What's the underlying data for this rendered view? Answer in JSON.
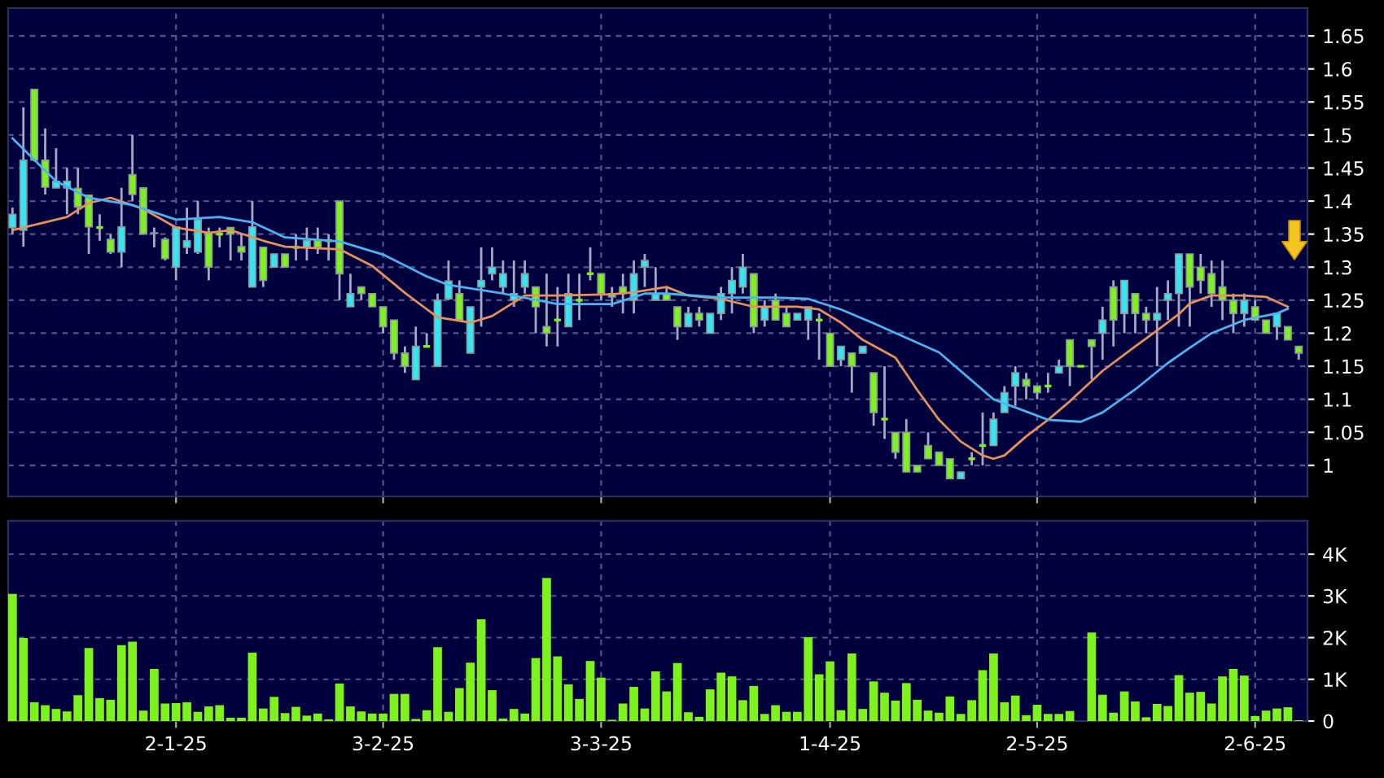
{
  "chart_data": [
    {
      "type": "candlestick",
      "ohlc": [
        [
          1.36,
          1.39,
          1.35,
          1.38
        ],
        [
          1.356,
          1.542,
          1.331,
          1.462
        ],
        [
          1.569,
          1.57,
          1.46,
          1.462
        ],
        [
          1.462,
          1.51,
          1.41,
          1.421
        ],
        [
          1.42,
          1.48,
          1.42,
          1.43
        ],
        [
          1.42,
          1.45,
          1.38,
          1.43
        ],
        [
          1.419,
          1.45,
          1.38,
          1.391
        ],
        [
          1.409,
          1.41,
          1.32,
          1.361
        ],
        [
          1.36,
          1.38,
          1.34,
          1.36
        ],
        [
          1.342,
          1.35,
          1.32,
          1.323
        ],
        [
          1.323,
          1.42,
          1.3,
          1.361
        ],
        [
          1.44,
          1.5,
          1.4,
          1.41
        ],
        [
          1.42,
          1.42,
          1.35,
          1.35
        ],
        [
          1.352,
          1.36,
          1.33,
          1.351
        ],
        [
          1.342,
          1.345,
          1.31,
          1.313
        ],
        [
          1.3,
          1.361,
          1.28,
          1.361
        ],
        [
          1.33,
          1.39,
          1.32,
          1.34
        ],
        [
          1.323,
          1.4,
          1.32,
          1.372
        ],
        [
          1.352,
          1.36,
          1.28,
          1.3
        ],
        [
          1.35,
          1.36,
          1.33,
          1.35
        ],
        [
          1.36,
          1.36,
          1.31,
          1.35
        ],
        [
          1.331,
          1.35,
          1.31,
          1.323
        ],
        [
          1.27,
          1.4,
          1.27,
          1.361
        ],
        [
          1.33,
          1.33,
          1.27,
          1.28
        ],
        [
          1.3,
          1.32,
          1.3,
          1.32
        ],
        [
          1.32,
          1.32,
          1.3,
          1.3
        ],
        [
          1.33,
          1.35,
          1.31,
          1.33
        ],
        [
          1.33,
          1.36,
          1.31,
          1.34
        ],
        [
          1.34,
          1.36,
          1.32,
          1.33
        ],
        [
          1.34,
          1.35,
          1.31,
          1.34
        ],
        [
          1.4,
          1.4,
          1.25,
          1.29
        ],
        [
          1.24,
          1.29,
          1.24,
          1.26
        ],
        [
          1.27,
          1.27,
          1.25,
          1.26
        ],
        [
          1.26,
          1.26,
          1.24,
          1.24
        ],
        [
          1.24,
          1.24,
          1.2,
          1.21
        ],
        [
          1.22,
          1.22,
          1.16,
          1.17
        ],
        [
          1.17,
          1.18,
          1.14,
          1.15
        ],
        [
          1.13,
          1.21,
          1.13,
          1.18
        ],
        [
          1.18,
          1.2,
          1.18,
          1.18
        ],
        [
          1.15,
          1.26,
          1.15,
          1.25
        ],
        [
          1.252,
          1.31,
          1.25,
          1.279
        ],
        [
          1.26,
          1.28,
          1.22,
          1.22
        ],
        [
          1.17,
          1.24,
          1.17,
          1.24
        ],
        [
          1.27,
          1.33,
          1.21,
          1.28
        ],
        [
          1.29,
          1.33,
          1.28,
          1.3
        ],
        [
          1.27,
          1.31,
          1.26,
          1.29
        ],
        [
          1.25,
          1.31,
          1.24,
          1.26
        ],
        [
          1.27,
          1.31,
          1.26,
          1.29
        ],
        [
          1.27,
          1.27,
          1.2,
          1.24
        ],
        [
          1.21,
          1.29,
          1.18,
          1.2
        ],
        [
          1.22,
          1.27,
          1.18,
          1.22
        ],
        [
          1.21,
          1.29,
          1.21,
          1.26
        ],
        [
          1.25,
          1.29,
          1.22,
          1.25
        ],
        [
          1.29,
          1.33,
          1.28,
          1.29
        ],
        [
          1.29,
          1.29,
          1.25,
          1.26
        ],
        [
          1.255,
          1.27,
          1.24,
          1.26
        ],
        [
          1.27,
          1.29,
          1.23,
          1.26
        ],
        [
          1.25,
          1.31,
          1.23,
          1.29
        ],
        [
          1.3,
          1.32,
          1.27,
          1.31
        ],
        [
          1.25,
          1.3,
          1.25,
          1.26
        ],
        [
          1.26,
          1.27,
          1.25,
          1.25
        ],
        [
          1.24,
          1.24,
          1.19,
          1.21
        ],
        [
          1.21,
          1.24,
          1.21,
          1.23
        ],
        [
          1.23,
          1.24,
          1.21,
          1.22
        ],
        [
          1.2,
          1.23,
          1.2,
          1.23
        ],
        [
          1.23,
          1.27,
          1.22,
          1.26
        ],
        [
          1.26,
          1.3,
          1.23,
          1.28
        ],
        [
          1.27,
          1.32,
          1.26,
          1.3
        ],
        [
          1.29,
          1.29,
          1.2,
          1.21
        ],
        [
          1.22,
          1.25,
          1.21,
          1.24
        ],
        [
          1.25,
          1.26,
          1.22,
          1.22
        ],
        [
          1.23,
          1.24,
          1.21,
          1.21
        ],
        [
          1.22,
          1.23,
          1.22,
          1.23
        ],
        [
          1.22,
          1.24,
          1.19,
          1.24
        ],
        [
          1.22,
          1.23,
          1.16,
          1.22
        ],
        [
          1.2,
          1.2,
          1.15,
          1.15
        ],
        [
          1.16,
          1.18,
          1.15,
          1.18
        ],
        [
          1.17,
          1.17,
          1.11,
          1.15
        ],
        [
          1.17,
          1.18,
          1.17,
          1.18
        ],
        [
          1.14,
          1.14,
          1.06,
          1.08
        ],
        [
          1.07,
          1.15,
          1.04,
          1.07
        ],
        [
          1.05,
          1.05,
          1.01,
          1.02
        ],
        [
          1.05,
          1.07,
          0.99,
          0.99
        ],
        [
          1.0,
          1.0,
          0.99,
          0.99
        ],
        [
          1.03,
          1.05,
          1.01,
          1.01
        ],
        [
          1.02,
          1.02,
          1.0,
          1.0
        ],
        [
          1.01,
          1.01,
          0.98,
          0.98
        ],
        [
          0.98,
          0.99,
          0.98,
          0.99
        ],
        [
          1.01,
          1.02,
          1.0,
          1.01
        ],
        [
          1.03,
          1.08,
          1.0,
          1.03
        ],
        [
          1.03,
          1.08,
          1.03,
          1.07
        ],
        [
          1.08,
          1.12,
          1.08,
          1.11
        ],
        [
          1.12,
          1.15,
          1.09,
          1.14
        ],
        [
          1.13,
          1.14,
          1.1,
          1.12
        ],
        [
          1.12,
          1.12,
          1.1,
          1.11
        ],
        [
          1.12,
          1.14,
          1.11,
          1.12
        ],
        [
          1.14,
          1.16,
          1.14,
          1.15
        ],
        [
          1.19,
          1.19,
          1.12,
          1.15
        ],
        [
          1.15,
          1.15,
          1.15,
          1.15
        ],
        [
          1.19,
          1.19,
          1.13,
          1.18
        ],
        [
          1.2,
          1.24,
          1.16,
          1.22
        ],
        [
          1.27,
          1.28,
          1.18,
          1.22
        ],
        [
          1.23,
          1.28,
          1.2,
          1.28
        ],
        [
          1.26,
          1.26,
          1.2,
          1.23
        ],
        [
          1.23,
          1.24,
          1.2,
          1.22
        ],
        [
          1.22,
          1.27,
          1.15,
          1.23
        ],
        [
          1.25,
          1.28,
          1.22,
          1.26
        ],
        [
          1.26,
          1.32,
          1.21,
          1.32
        ],
        [
          1.32,
          1.32,
          1.21,
          1.27
        ],
        [
          1.3,
          1.32,
          1.26,
          1.28
        ],
        [
          1.29,
          1.31,
          1.24,
          1.26
        ],
        [
          1.27,
          1.31,
          1.22,
          1.25
        ],
        [
          1.25,
          1.26,
          1.2,
          1.23
        ],
        [
          1.23,
          1.26,
          1.21,
          1.25
        ],
        [
          1.24,
          1.25,
          1.22,
          1.22
        ],
        [
          1.22,
          1.22,
          1.2,
          1.2
        ],
        [
          1.21,
          1.23,
          1.19,
          1.23
        ],
        [
          1.21,
          1.21,
          1.19,
          1.19
        ],
        [
          1.18,
          1.18,
          1.16,
          1.17
        ]
      ],
      "colors": [
        "#33e6f2",
        "#33e6f2",
        "#7df21c",
        "#7df21c",
        "#33e6f2",
        "#33e6f2",
        "#7df21c",
        "#7df21c",
        "#7df21c",
        "#7df21c",
        "#33e6f2",
        "#7df21c",
        "#7df21c",
        "#7df21c",
        "#7df21c",
        "#33e6f2",
        "#33e6f2",
        "#33e6f2",
        "#7df21c",
        "#7df21c",
        "#7df21c",
        "#7df21c",
        "#33e6f2",
        "#7df21c",
        "#33e6f2",
        "#7df21c",
        "#7df21c",
        "#33e6f2",
        "#7df21c",
        "#7df21c",
        "#7df21c",
        "#33e6f2",
        "#7df21c",
        "#7df21c",
        "#7df21c",
        "#7df21c",
        "#7df21c",
        "#33e6f2",
        "#7df21c",
        "#33e6f2",
        "#33e6f2",
        "#7df21c",
        "#33e6f2",
        "#33e6f2",
        "#33e6f2",
        "#33e6f2",
        "#33e6f2",
        "#33e6f2",
        "#7df21c",
        "#7df21c",
        "#7df21c",
        "#33e6f2",
        "#7df21c",
        "#7df21c",
        "#7df21c",
        "#33e6f2",
        "#7df21c",
        "#33e6f2",
        "#33e6f2",
        "#33e6f2",
        "#7df21c",
        "#7df21c",
        "#33e6f2",
        "#7df21c",
        "#33e6f2",
        "#33e6f2",
        "#33e6f2",
        "#33e6f2",
        "#7df21c",
        "#33e6f2",
        "#7df21c",
        "#7df21c",
        "#33e6f2",
        "#33e6f2",
        "#7df21c",
        "#7df21c",
        "#33e6f2",
        "#7df21c",
        "#33e6f2",
        "#7df21c",
        "#7df21c",
        "#7df21c",
        "#7df21c",
        "#7df21c",
        "#7df21c",
        "#7df21c",
        "#7df21c",
        "#33e6f2",
        "#7df21c",
        "#7df21c",
        "#33e6f2",
        "#33e6f2",
        "#33e6f2",
        "#7df21c",
        "#7df21c",
        "#7df21c",
        "#33e6f2",
        "#7df21c",
        "#7df21c",
        "#7df21c",
        "#33e6f2",
        "#7df21c",
        "#33e6f2",
        "#7df21c",
        "#7df21c",
        "#33e6f2",
        "#33e6f2",
        "#33e6f2",
        "#7df21c",
        "#7df21c",
        "#7df21c",
        "#7df21c",
        "#7df21c",
        "#33e6f2",
        "#7df21c",
        "#7df21c",
        "#33e6f2",
        "#7df21c",
        "#7df21c"
      ],
      "series": [
        {
          "type": "line",
          "color": "#e8905a",
          "values": [
            1.356,
            null,
            null,
            null,
            null,
            1.376,
            null,
            1.397,
            null,
            1.405,
            null,
            null,
            1.388,
            null,
            null,
            1.36,
            null,
            null,
            1.352,
            null,
            1.356,
            null,
            null,
            1.34,
            null,
            1.331,
            null,
            null,
            null,
            null,
            1.327,
            null,
            null,
            1.302,
            null,
            null,
            1.261,
            null,
            null,
            1.224,
            null,
            null,
            1.216,
            null,
            1.226,
            null,
            null,
            1.257,
            null,
            null,
            1.257,
            null,
            null,
            null,
            null,
            1.259,
            null,
            1.262,
            null,
            null,
            1.27,
            null,
            1.257,
            null,
            null,
            1.252,
            null,
            null,
            1.24,
            null,
            null,
            null,
            1.24,
            null,
            1.236,
            null,
            1.216,
            null,
            1.19,
            null,
            null,
            1.163,
            null,
            1.114,
            null,
            1.069,
            null,
            1.036,
            null,
            1.015,
            1.01,
            1.015,
            null,
            1.044,
            null,
            1.069,
            null,
            1.097,
            null,
            null,
            1.143,
            null,
            null,
            1.18,
            null,
            1.204,
            null,
            1.229,
            1.245,
            null,
            1.257,
            null,
            null,
            1.257,
            null,
            1.255,
            null,
            1.24,
            null
          ]
        },
        {
          "type": "line",
          "color": "#4ab4f0",
          "values": [
            1.495,
            null,
            null,
            null,
            1.43,
            null,
            null,
            1.405,
            null,
            null,
            null,
            1.394,
            null,
            null,
            null,
            1.372,
            null,
            null,
            null,
            1.376,
            null,
            null,
            1.368,
            null,
            null,
            1.345,
            null,
            null,
            null,
            null,
            1.339,
            null,
            null,
            null,
            1.319,
            null,
            null,
            null,
            1.286,
            null,
            1.273,
            null,
            null,
            null,
            null,
            1.26,
            null,
            null,
            null,
            null,
            1.244,
            null,
            null,
            null,
            null,
            1.244,
            null,
            null,
            1.26,
            null,
            1.26,
            null,
            null,
            null,
            null,
            1.254,
            null,
            null,
            null,
            null,
            1.254,
            null,
            null,
            1.252,
            null,
            null,
            1.236,
            null,
            null,
            1.215,
            null,
            null,
            null,
            null,
            null,
            1.171,
            null,
            null,
            null,
            null,
            1.1,
            null,
            null,
            null,
            null,
            1.069,
            null,
            null,
            1.066,
            null,
            1.08,
            null,
            null,
            1.115,
            null,
            null,
            1.155,
            null,
            1.178,
            null,
            1.2,
            null,
            null,
            1.22,
            null,
            null,
            1.23,
            1.237,
            null
          ]
        }
      ],
      "ylim": [
        0.953,
        1.692
      ],
      "yticks": [
        1,
        1.05,
        1.1,
        1.15,
        1.2,
        1.25,
        1.3,
        1.35,
        1.4,
        1.45,
        1.5,
        1.55,
        1.6,
        1.65
      ],
      "grid": true,
      "tick_labels": "y"
    },
    {
      "type": "bar",
      "categories": [
        null,
        null,
        null,
        null,
        null,
        null,
        null,
        null,
        null,
        null,
        null,
        null,
        null,
        null,
        null,
        "2-1-25",
        null,
        null,
        null,
        null,
        null,
        null,
        null,
        null,
        null,
        null,
        null,
        null,
        null,
        null,
        null,
        null,
        null,
        null,
        "3-2-25",
        null,
        null,
        null,
        null,
        null,
        null,
        null,
        null,
        null,
        null,
        null,
        null,
        null,
        null,
        null,
        null,
        null,
        null,
        null,
        "3-3-25",
        null,
        null,
        null,
        null,
        null,
        null,
        null,
        null,
        null,
        null,
        null,
        null,
        null,
        null,
        null,
        null,
        null,
        null,
        null,
        null,
        "1-4-25",
        null,
        null,
        null,
        null,
        null,
        null,
        null,
        null,
        null,
        null,
        null,
        null,
        null,
        null,
        null,
        null,
        null,
        null,
        "2-5-25",
        null,
        null,
        null,
        null,
        null,
        null,
        null,
        null,
        null,
        null,
        null,
        null,
        null,
        null,
        null,
        null,
        null,
        null,
        null,
        "2-6-25",
        null,
        null,
        null,
        null
      ],
      "values": [
        3.05,
        1.99,
        0.45,
        0.38,
        0.29,
        0.23,
        0.62,
        1.75,
        0.55,
        0.51,
        1.82,
        1.9,
        0.25,
        1.25,
        0.42,
        0.43,
        0.45,
        0.22,
        0.35,
        0.38,
        0.08,
        0.08,
        1.64,
        0.3,
        0.58,
        0.19,
        0.34,
        0.13,
        0.18,
        0.04,
        0.9,
        0.35,
        0.23,
        0.18,
        0.18,
        0.65,
        0.65,
        0.05,
        0.26,
        1.77,
        0.22,
        0.79,
        1.4,
        2.44,
        0.74,
        0.06,
        0.29,
        0.18,
        1.51,
        3.43,
        1.55,
        0.88,
        0.53,
        1.44,
        1.04,
        0.03,
        0.42,
        0.82,
        0.3,
        1.19,
        0.71,
        1.39,
        0.21,
        0.1,
        0.76,
        1.16,
        1.07,
        0.5,
        0.84,
        0.17,
        0.38,
        0.22,
        0.22,
        2.01,
        1.12,
        1.43,
        0.26,
        1.62,
        0.29,
        0.95,
        0.68,
        0.49,
        0.91,
        0.51,
        0.25,
        0.2,
        0.59,
        0.17,
        0.5,
        1.22,
        1.62,
        0.45,
        0.61,
        0.14,
        0.39,
        0.17,
        0.17,
        0.24,
        0,
        2.12,
        0.63,
        0.2,
        0.71,
        0.47,
        0.09,
        0.41,
        0.36,
        1.1,
        0.68,
        0.7,
        0.42,
        1.07,
        1.25,
        1.09,
        0.12,
        0.25,
        0.3,
        0.33,
        0.02
      ],
      "color": "#7df21c",
      "ylim": [
        0,
        4.8
      ],
      "yticks": [
        0,
        {
          "value": 1,
          "label": "1K"
        },
        {
          "value": 2,
          "label": "2K"
        },
        {
          "value": 3,
          "label": "3K"
        },
        {
          "value": 4,
          "label": "4K"
        }
      ],
      "grid": true
    }
  ]
}
